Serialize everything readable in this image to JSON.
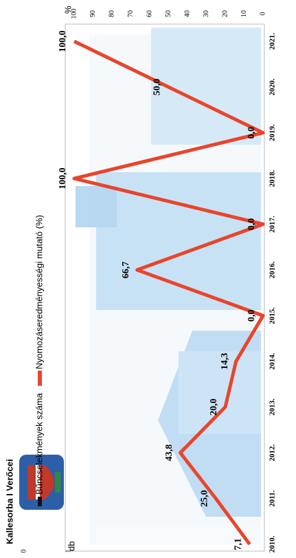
{
  "chart_data": {
    "type": "line",
    "title": "Kallesorba I Verőcei",
    "categories": [
      "2010.",
      "2011.",
      "2012.",
      "2013.",
      "2014.",
      "2015.",
      "2016.",
      "2017.",
      "2018.",
      "2019.",
      "2020.",
      "2021."
    ],
    "series": [
      {
        "name": "Bűncselekmények száma",
        "color": "#111111",
        "axis": "y",
        "values": [
          null,
          null,
          null,
          null,
          null,
          null,
          null,
          null,
          null,
          null,
          null,
          null
        ]
      },
      {
        "name": "Nyomozáseredményességi mutató (%)",
        "color": "#e8452c",
        "axis": "y2",
        "values": [
          7.1,
          25.0,
          43.8,
          20.0,
          14.3,
          0.0,
          66.7,
          0.0,
          100.0,
          0.0,
          50.0,
          100.0
        ],
        "value_labels": [
          "7,1",
          "25,0",
          "43,8",
          "20,0",
          "14,3",
          "0,0",
          "66,7",
          "0,0",
          "100,0",
          "0,0",
          "50,0",
          "100,0"
        ]
      }
    ],
    "ylabel": "db",
    "ylim": [
      0,
      1
    ],
    "yticks": [
      0,
      1
    ],
    "y2label": "%",
    "y2lim": [
      0,
      100
    ],
    "y2ticks": [
      0,
      10,
      20,
      30,
      40,
      50,
      60,
      70,
      80,
      90,
      100
    ],
    "rotation": -90
  }
}
